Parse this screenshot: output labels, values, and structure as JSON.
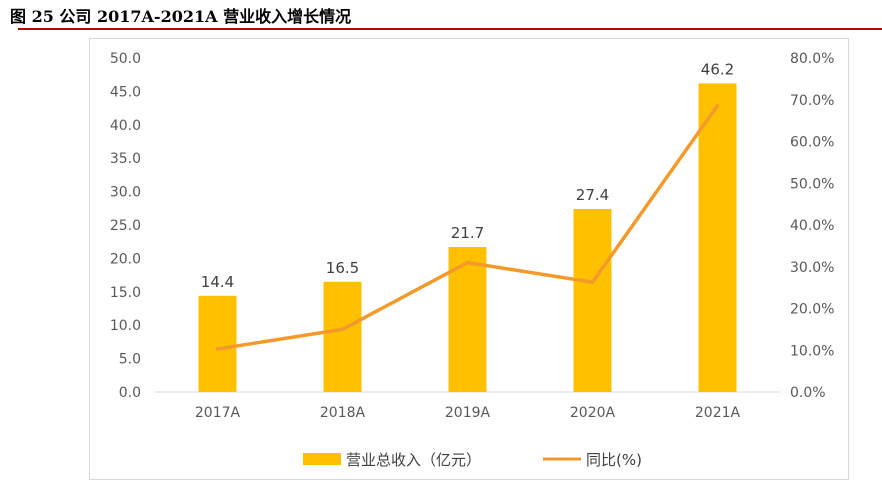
{
  "figure": {
    "title": "图 25 公司 2017A-2021A 营业收入增长情况"
  },
  "colors": {
    "bar": "#ffc000",
    "line": "#f39a2b",
    "rule": "#c00000"
  },
  "chart_data": {
    "type": "bar",
    "categories": [
      "2017A",
      "2018A",
      "2019A",
      "2020A",
      "2021A"
    ],
    "series": [
      {
        "name": "营业总收入（亿元）",
        "type": "bar",
        "axis": "left",
        "values": [
          14.4,
          16.5,
          21.7,
          27.4,
          46.2
        ],
        "labels": [
          "14.4",
          "16.5",
          "21.7",
          "27.4",
          "46.2"
        ]
      },
      {
        "name": "同比(%)",
        "type": "line",
        "axis": "right",
        "values": [
          10.3,
          15.0,
          31.0,
          26.3,
          68.6
        ]
      }
    ],
    "y_left": {
      "ylim": [
        0,
        50
      ],
      "ticks": [
        "0.0",
        "5.0",
        "10.0",
        "15.0",
        "20.0",
        "25.0",
        "30.0",
        "35.0",
        "40.0",
        "45.0",
        "50.0"
      ]
    },
    "y_right": {
      "ylim": [
        0,
        80
      ],
      "ticks": [
        "0.0%",
        "10.0%",
        "20.0%",
        "30.0%",
        "40.0%",
        "50.0%",
        "60.0%",
        "70.0%",
        "80.0%"
      ]
    },
    "grid": false,
    "legend_position": "bottom-center"
  }
}
